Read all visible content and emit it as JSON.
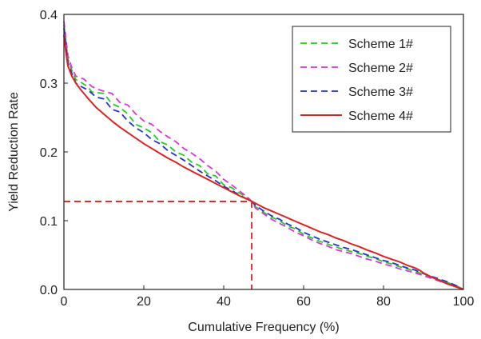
{
  "chart_data": {
    "type": "line",
    "xlabel": "Cumulative Frequency (%)",
    "ylabel": "Yield Reduction Rate",
    "xlim": [
      0,
      100
    ],
    "ylim": [
      0,
      0.4
    ],
    "x_ticks": [
      0,
      20,
      40,
      60,
      80,
      100
    ],
    "y_ticks": [
      0.0,
      0.1,
      0.2,
      0.3,
      0.4
    ],
    "x_tick_labels": [
      "0",
      "20",
      "40",
      "60",
      "80",
      "100"
    ],
    "y_tick_labels": [
      "0.0",
      "0.1",
      "0.2",
      "0.3",
      "0.4"
    ],
    "grid": false,
    "legend_position": "top-right",
    "series": [
      {
        "name": "Scheme 1#",
        "color": "#22cc22",
        "dash": "dashed",
        "points": [
          [
            0,
            0.385
          ],
          [
            0.5,
            0.36
          ],
          [
            1,
            0.335
          ],
          [
            2,
            0.318
          ],
          [
            3,
            0.305
          ],
          [
            4,
            0.302
          ],
          [
            6,
            0.295
          ],
          [
            7,
            0.287
          ],
          [
            10,
            0.285
          ],
          [
            12,
            0.27
          ],
          [
            14,
            0.265
          ],
          [
            16,
            0.255
          ],
          [
            18,
            0.24
          ],
          [
            20,
            0.235
          ],
          [
            22,
            0.228
          ],
          [
            24,
            0.215
          ],
          [
            26,
            0.21
          ],
          [
            28,
            0.2
          ],
          [
            30,
            0.195
          ],
          [
            32,
            0.185
          ],
          [
            34,
            0.18
          ],
          [
            36,
            0.168
          ],
          [
            38,
            0.165
          ],
          [
            40,
            0.152
          ],
          [
            42,
            0.148
          ],
          [
            44,
            0.14
          ],
          [
            46,
            0.133
          ],
          [
            47,
            0.128
          ],
          [
            48,
            0.12
          ],
          [
            50,
            0.112
          ],
          [
            52,
            0.105
          ],
          [
            54,
            0.1
          ],
          [
            56,
            0.092
          ],
          [
            58,
            0.088
          ],
          [
            60,
            0.08
          ],
          [
            62,
            0.075
          ],
          [
            64,
            0.07
          ],
          [
            66,
            0.066
          ],
          [
            68,
            0.062
          ],
          [
            70,
            0.058
          ],
          [
            72,
            0.055
          ],
          [
            74,
            0.052
          ],
          [
            76,
            0.048
          ],
          [
            78,
            0.045
          ],
          [
            80,
            0.04
          ],
          [
            82,
            0.037
          ],
          [
            84,
            0.033
          ],
          [
            86,
            0.03
          ],
          [
            88,
            0.026
          ],
          [
            90,
            0.022
          ],
          [
            92,
            0.018
          ],
          [
            94,
            0.014
          ],
          [
            96,
            0.01
          ],
          [
            98,
            0.006
          ],
          [
            100,
            0.0
          ]
        ]
      },
      {
        "name": "Scheme 2#",
        "color": "#dd33dd",
        "dash": "dashed",
        "points": [
          [
            0,
            0.39
          ],
          [
            0.5,
            0.365
          ],
          [
            1,
            0.34
          ],
          [
            2,
            0.322
          ],
          [
            3,
            0.31
          ],
          [
            5,
            0.306
          ],
          [
            7,
            0.295
          ],
          [
            9,
            0.29
          ],
          [
            12,
            0.285
          ],
          [
            14,
            0.272
          ],
          [
            16,
            0.268
          ],
          [
            18,
            0.255
          ],
          [
            20,
            0.245
          ],
          [
            22,
            0.24
          ],
          [
            24,
            0.23
          ],
          [
            26,
            0.222
          ],
          [
            28,
            0.215
          ],
          [
            30,
            0.205
          ],
          [
            32,
            0.198
          ],
          [
            34,
            0.19
          ],
          [
            36,
            0.18
          ],
          [
            38,
            0.172
          ],
          [
            40,
            0.16
          ],
          [
            42,
            0.152
          ],
          [
            44,
            0.143
          ],
          [
            46,
            0.134
          ],
          [
            47,
            0.128
          ],
          [
            48,
            0.118
          ],
          [
            50,
            0.11
          ],
          [
            52,
            0.102
          ],
          [
            54,
            0.096
          ],
          [
            56,
            0.09
          ],
          [
            58,
            0.083
          ],
          [
            60,
            0.078
          ],
          [
            62,
            0.072
          ],
          [
            64,
            0.067
          ],
          [
            66,
            0.063
          ],
          [
            68,
            0.058
          ],
          [
            70,
            0.055
          ],
          [
            72,
            0.052
          ],
          [
            74,
            0.048
          ],
          [
            76,
            0.044
          ],
          [
            78,
            0.041
          ],
          [
            80,
            0.037
          ],
          [
            82,
            0.034
          ],
          [
            84,
            0.03
          ],
          [
            86,
            0.027
          ],
          [
            88,
            0.024
          ],
          [
            90,
            0.02
          ],
          [
            92,
            0.016
          ],
          [
            94,
            0.012
          ],
          [
            96,
            0.008
          ],
          [
            98,
            0.005
          ],
          [
            100,
            0.0
          ]
        ]
      },
      {
        "name": "Scheme 3#",
        "color": "#2233cc",
        "dash": "dashed",
        "points": [
          [
            0,
            0.38
          ],
          [
            0.5,
            0.355
          ],
          [
            1,
            0.33
          ],
          [
            2,
            0.314
          ],
          [
            3,
            0.3
          ],
          [
            4,
            0.296
          ],
          [
            6,
            0.29
          ],
          [
            8,
            0.28
          ],
          [
            10,
            0.277
          ],
          [
            12,
            0.262
          ],
          [
            14,
            0.258
          ],
          [
            16,
            0.245
          ],
          [
            18,
            0.235
          ],
          [
            20,
            0.228
          ],
          [
            22,
            0.218
          ],
          [
            24,
            0.212
          ],
          [
            26,
            0.202
          ],
          [
            28,
            0.195
          ],
          [
            30,
            0.188
          ],
          [
            32,
            0.18
          ],
          [
            34,
            0.172
          ],
          [
            36,
            0.165
          ],
          [
            38,
            0.158
          ],
          [
            40,
            0.15
          ],
          [
            42,
            0.144
          ],
          [
            44,
            0.137
          ],
          [
            46,
            0.131
          ],
          [
            47,
            0.128
          ],
          [
            48,
            0.122
          ],
          [
            50,
            0.114
          ],
          [
            52,
            0.107
          ],
          [
            54,
            0.102
          ],
          [
            56,
            0.095
          ],
          [
            58,
            0.09
          ],
          [
            60,
            0.083
          ],
          [
            62,
            0.078
          ],
          [
            64,
            0.073
          ],
          [
            66,
            0.069
          ],
          [
            68,
            0.065
          ],
          [
            70,
            0.061
          ],
          [
            72,
            0.058
          ],
          [
            74,
            0.054
          ],
          [
            76,
            0.05
          ],
          [
            78,
            0.046
          ],
          [
            80,
            0.042
          ],
          [
            82,
            0.039
          ],
          [
            84,
            0.035
          ],
          [
            86,
            0.031
          ],
          [
            88,
            0.028
          ],
          [
            90,
            0.023
          ],
          [
            92,
            0.019
          ],
          [
            94,
            0.015
          ],
          [
            96,
            0.011
          ],
          [
            98,
            0.006
          ],
          [
            100,
            0.0
          ]
        ]
      },
      {
        "name": "Scheme 4#",
        "color": "#dd2222",
        "dash": "solid",
        "points": [
          [
            0,
            0.37
          ],
          [
            0.5,
            0.345
          ],
          [
            1,
            0.325
          ],
          [
            2,
            0.31
          ],
          [
            3,
            0.3
          ],
          [
            4,
            0.292
          ],
          [
            6,
            0.278
          ],
          [
            8,
            0.265
          ],
          [
            10,
            0.255
          ],
          [
            12,
            0.245
          ],
          [
            14,
            0.236
          ],
          [
            16,
            0.228
          ],
          [
            18,
            0.22
          ],
          [
            20,
            0.212
          ],
          [
            22,
            0.205
          ],
          [
            24,
            0.198
          ],
          [
            26,
            0.191
          ],
          [
            28,
            0.185
          ],
          [
            30,
            0.178
          ],
          [
            32,
            0.172
          ],
          [
            34,
            0.166
          ],
          [
            36,
            0.16
          ],
          [
            38,
            0.154
          ],
          [
            40,
            0.148
          ],
          [
            42,
            0.142
          ],
          [
            44,
            0.136
          ],
          [
            46,
            0.131
          ],
          [
            47,
            0.128
          ],
          [
            48,
            0.125
          ],
          [
            50,
            0.119
          ],
          [
            52,
            0.114
          ],
          [
            54,
            0.109
          ],
          [
            56,
            0.104
          ],
          [
            58,
            0.099
          ],
          [
            60,
            0.094
          ],
          [
            62,
            0.089
          ],
          [
            64,
            0.084
          ],
          [
            66,
            0.08
          ],
          [
            68,
            0.075
          ],
          [
            70,
            0.071
          ],
          [
            72,
            0.066
          ],
          [
            74,
            0.062
          ],
          [
            76,
            0.057
          ],
          [
            78,
            0.053
          ],
          [
            80,
            0.048
          ],
          [
            82,
            0.044
          ],
          [
            84,
            0.04
          ],
          [
            86,
            0.035
          ],
          [
            88,
            0.031
          ],
          [
            89,
            0.028
          ],
          [
            90,
            0.024
          ],
          [
            92,
            0.018
          ],
          [
            94,
            0.013
          ],
          [
            96,
            0.008
          ],
          [
            98,
            0.004
          ],
          [
            100,
            0.0
          ]
        ]
      }
    ],
    "reference_point": {
      "x": 47,
      "y": 0.128,
      "color": "#dd2222",
      "dash": "dashed"
    }
  }
}
